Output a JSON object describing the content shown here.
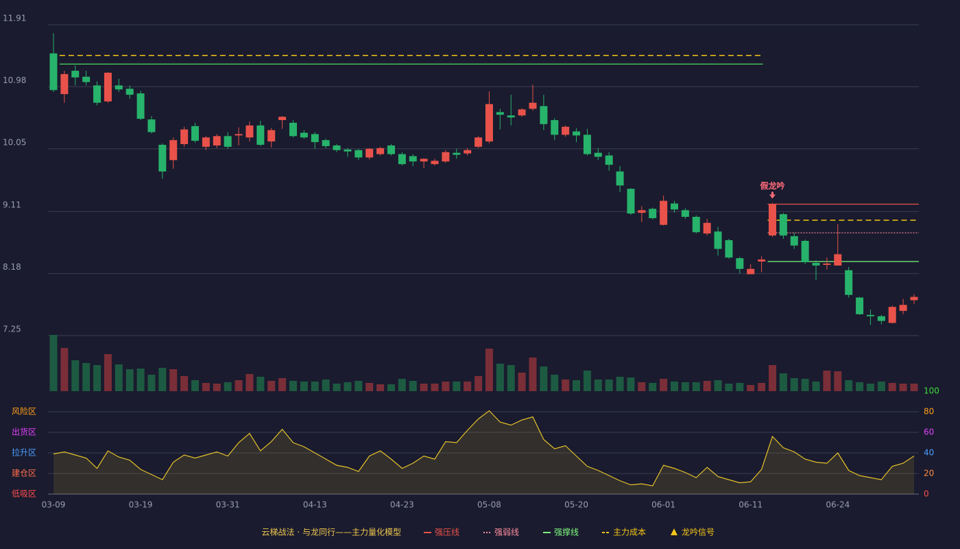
{
  "chart_data": [
    {
      "type": "candlestick",
      "categories": [
        "03-09",
        null,
        null,
        null,
        null,
        null,
        null,
        null,
        "03-19",
        null,
        null,
        null,
        null,
        null,
        null,
        null,
        "03-31",
        null,
        null,
        null,
        null,
        null,
        null,
        null,
        "04-13",
        null,
        null,
        null,
        null,
        null,
        null,
        null,
        "04-23",
        null,
        null,
        null,
        null,
        null,
        null,
        null,
        "05-08",
        null,
        null,
        null,
        null,
        null,
        null,
        null,
        "05-20",
        null,
        null,
        null,
        null,
        null,
        null,
        null,
        "06-01",
        null,
        null,
        null,
        null,
        null,
        null,
        null,
        "06-11",
        null,
        null,
        null,
        null,
        null,
        null,
        null,
        "06-24",
        null,
        null,
        null,
        null,
        null,
        null,
        null
      ],
      "open": [
        11.48,
        10.87,
        11.22,
        11.13,
        11.0,
        10.76,
        11.0,
        10.95,
        10.88,
        10.49,
        10.11,
        9.88,
        10.12,
        10.39,
        10.08,
        10.1,
        10.24,
        10.25,
        10.22,
        10.4,
        10.16,
        10.48,
        10.44,
        10.29,
        10.27,
        10.18,
        10.1,
        10.04,
        10.03,
        9.92,
        9.97,
        10.1,
        9.97,
        9.94,
        9.86,
        9.82,
        9.86,
        9.99,
        9.98,
        10.08,
        10.16,
        10.6,
        10.55,
        10.55,
        10.65,
        10.69,
        10.48,
        10.26,
        10.31,
        10.26,
        9.99,
        9.95,
        9.71,
        9.45,
        9.09,
        9.15,
        8.91,
        9.23,
        9.13,
        9.03,
        8.78,
        8.81,
        8.68,
        8.41,
        8.17,
        8.36,
        8.75,
        9.07,
        8.74,
        8.67,
        8.34,
        8.31,
        8.3,
        8.23,
        7.82,
        7.56,
        7.54,
        7.44,
        7.62,
        7.78
      ],
      "high": [
        11.78,
        11.22,
        11.3,
        11.22,
        11.06,
        11.2,
        11.1,
        11.0,
        10.92,
        10.54,
        10.13,
        10.22,
        10.38,
        10.44,
        10.24,
        10.27,
        10.3,
        10.37,
        10.46,
        10.47,
        10.36,
        10.54,
        10.48,
        10.33,
        10.3,
        10.2,
        10.12,
        10.06,
        10.05,
        10.06,
        10.08,
        10.12,
        10.0,
        9.97,
        9.91,
        9.9,
        10.03,
        10.05,
        10.06,
        10.24,
        10.91,
        10.65,
        10.86,
        10.66,
        11.01,
        10.86,
        10.51,
        10.4,
        10.36,
        10.35,
        10.06,
        10.0,
        9.79,
        9.46,
        9.19,
        9.17,
        9.35,
        9.27,
        9.16,
        9.05,
        9.0,
        8.88,
        8.7,
        8.43,
        8.32,
        8.44,
        9.24,
        9.09,
        8.79,
        8.69,
        8.38,
        8.42,
        8.92,
        8.28,
        7.83,
        7.64,
        7.56,
        7.7,
        7.8,
        7.87
      ],
      "low": [
        10.9,
        10.74,
        11.0,
        11.0,
        10.7,
        10.74,
        10.9,
        10.8,
        10.48,
        10.28,
        9.6,
        9.75,
        10.08,
        10.14,
        10.03,
        10.06,
        10.05,
        10.1,
        10.16,
        10.09,
        10.07,
        10.35,
        10.22,
        10.2,
        10.05,
        10.06,
        10.0,
        9.93,
        9.88,
        9.89,
        9.95,
        9.95,
        9.8,
        9.79,
        9.76,
        9.8,
        9.84,
        9.9,
        9.95,
        10.06,
        10.13,
        10.34,
        10.4,
        10.53,
        10.62,
        10.33,
        10.18,
        10.23,
        10.15,
        9.95,
        9.88,
        9.72,
        9.4,
        9.06,
        8.95,
        8.99,
        8.9,
        9.09,
        9.0,
        8.78,
        8.75,
        8.45,
        8.4,
        8.18,
        8.17,
        8.2,
        8.73,
        8.7,
        8.55,
        8.32,
        8.08,
        8.24,
        8.3,
        7.82,
        7.56,
        7.41,
        7.42,
        7.43,
        7.57,
        7.72
      ],
      "close": [
        10.93,
        11.17,
        11.12,
        11.05,
        10.74,
        11.19,
        10.94,
        10.86,
        10.5,
        10.3,
        9.71,
        10.18,
        10.34,
        10.17,
        10.22,
        10.24,
        10.08,
        10.27,
        10.4,
        10.11,
        10.33,
        10.53,
        10.24,
        10.22,
        10.15,
        10.09,
        10.03,
        10.01,
        9.92,
        10.05,
        10.06,
        9.97,
        9.82,
        9.86,
        9.9,
        9.87,
        10.0,
        9.96,
        10.03,
        10.22,
        10.72,
        10.56,
        10.52,
        10.64,
        10.74,
        10.42,
        10.26,
        10.38,
        10.25,
        9.97,
        9.93,
        9.81,
        9.5,
        9.08,
        9.13,
        9.01,
        9.27,
        9.14,
        9.03,
        8.8,
        8.94,
        8.55,
        8.42,
        8.25,
        8.25,
        8.39,
        9.22,
        8.75,
        8.6,
        8.35,
        8.3,
        8.33,
        8.47,
        7.86,
        7.57,
        7.54,
        7.47,
        7.68,
        7.71,
        7.83
      ],
      "up_color": "#e8524a",
      "down_color": "#27b36b",
      "ylim": [
        7.25,
        11.91
      ],
      "yticks": [
        7.25,
        8.18,
        9.11,
        10.05,
        10.98,
        11.91
      ],
      "grid": true,
      "levels": [
        {
          "value": 11.45,
          "from": 1,
          "to": 65,
          "color": "#f5c518",
          "style": "dashed"
        },
        {
          "value": 11.32,
          "from": 1,
          "to": 65,
          "color": "#4cd964",
          "style": "solid"
        },
        {
          "value": 9.22,
          "from": 66,
          "to": 79,
          "color": "#e8524a",
          "style": "solid"
        },
        {
          "value": 8.98,
          "from": 66,
          "to": 79,
          "color": "#f5c518",
          "style": "dashed"
        },
        {
          "value": 8.79,
          "from": 66,
          "to": 79,
          "color": "#ff8fa0",
          "style": "dotted"
        },
        {
          "value": 8.36,
          "from": 66,
          "to": 79,
          "color": "#7dfa7d",
          "style": "solid"
        }
      ],
      "signal": {
        "index": 66,
        "label": "假龙吟",
        "color": "#ff6b7a"
      }
    },
    {
      "type": "bar",
      "values": [
        82,
        63,
        45,
        41,
        38,
        54,
        39,
        32,
        33,
        24,
        34,
        32,
        22,
        16,
        12,
        11,
        13,
        16,
        25,
        21,
        15,
        19,
        15,
        14,
        14,
        17,
        11,
        13,
        15,
        12,
        10,
        10,
        18,
        15,
        11,
        11,
        14,
        14,
        14,
        22,
        62,
        40,
        38,
        27,
        49,
        36,
        24,
        17,
        16,
        30,
        17,
        17,
        21,
        20,
        13,
        12,
        18,
        14,
        13,
        13,
        15,
        16,
        11,
        12,
        9,
        12,
        38,
        26,
        19,
        18,
        14,
        30,
        29,
        16,
        13,
        11,
        14,
        12,
        11,
        11
      ],
      "up_color": "#7a2e38",
      "down_color": "#1d5a42"
    },
    {
      "type": "line",
      "values": [
        39,
        41,
        38,
        35,
        25,
        42,
        36,
        33,
        24,
        19,
        14,
        31,
        38,
        35,
        38,
        41,
        37,
        50,
        59,
        42,
        51,
        63,
        50,
        46,
        40,
        34,
        28,
        26,
        22,
        37,
        42,
        34,
        25,
        30,
        37,
        34,
        51,
        50,
        62,
        73,
        81,
        70,
        67,
        72,
        75,
        53,
        44,
        47,
        37,
        27,
        23,
        18,
        13,
        9,
        10,
        8,
        28,
        25,
        21,
        16,
        26,
        17,
        14,
        11,
        12,
        24,
        56,
        45,
        41,
        34,
        31,
        30,
        40,
        23,
        18,
        16,
        14,
        27,
        30,
        37
      ],
      "color": "#e6c229",
      "ylim": [
        0,
        100
      ],
      "yticks": [
        0,
        20,
        40,
        60,
        80,
        100
      ],
      "ytick_colors": [
        "#ff4d4d",
        "#ff8c42",
        "#4a9eff",
        "#e040fb",
        "#ff9f1c",
        "#3ddc3d"
      ],
      "zones": [
        "低吸区",
        "建仓区",
        "拉升区",
        "出货区",
        "风险区"
      ],
      "zone_colors": [
        "#ff4d4d",
        "#ff6b4a",
        "#4a9eff",
        "#e040fb",
        "#ff9f1c"
      ]
    }
  ],
  "legend": {
    "title": "云梯战法 · 与龙同行——主力量化模型",
    "title_color": "#f0c850",
    "items": [
      {
        "label": "强压线",
        "color": "#e8524a",
        "style": "solid"
      },
      {
        "label": "强弱线",
        "color": "#ff8fa0",
        "style": "dotted"
      },
      {
        "label": "强撑线",
        "color": "#7dfa7d",
        "style": "solid"
      },
      {
        "label": "主力成本",
        "color": "#f5c518",
        "style": "dashed"
      },
      {
        "label": "龙吟信号",
        "color": "#f5c518",
        "style": "triangle"
      }
    ]
  }
}
